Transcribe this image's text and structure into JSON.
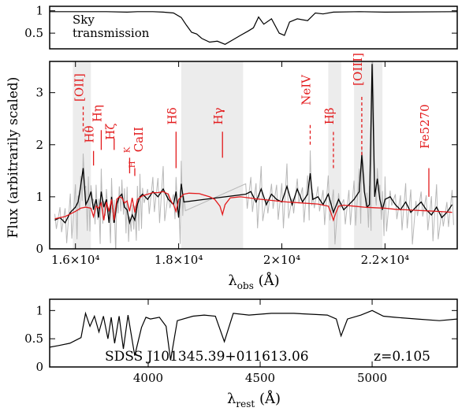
{
  "colors": {
    "model": "#e31a1c",
    "spectrum": "#000000",
    "error": "#b8b8b8",
    "shade": "#ececec",
    "line_labels": "#e31a1c"
  },
  "chart_data": [
    {
      "type": "line",
      "id": "sky",
      "label_lines": [
        "Sky",
        "transmission"
      ],
      "xlim": [
        15500,
        23400
      ],
      "ylim": [
        0.15,
        1.1
      ],
      "yticks": [
        0.5,
        1
      ],
      "ytick_labels": [
        "0.5",
        "1"
      ],
      "series": [
        {
          "x": [
            15500,
            16000,
            16600,
            17000,
            17200,
            17500,
            17700,
            17900,
            18050,
            18150,
            18250,
            18350,
            18450,
            18600,
            18750,
            18900,
            19050,
            19200,
            19350,
            19450,
            19550,
            19650,
            19800,
            19950,
            20050,
            20150,
            20300,
            20500,
            20650,
            20800,
            21000,
            21500,
            22000,
            23400
          ],
          "y": [
            0.98,
            0.98,
            0.98,
            0.97,
            0.98,
            0.98,
            0.97,
            0.95,
            0.85,
            0.68,
            0.52,
            0.48,
            0.38,
            0.3,
            0.32,
            0.25,
            0.35,
            0.45,
            0.55,
            0.62,
            0.86,
            0.7,
            0.82,
            0.5,
            0.45,
            0.75,
            0.82,
            0.78,
            0.95,
            0.93,
            0.97,
            0.98,
            0.97,
            0.98
          ]
        }
      ]
    },
    {
      "type": "line",
      "id": "obs",
      "xlabel": "λ",
      "xlabel_sub": "obs",
      "xlabel_unit": "(Å)",
      "ylabel": "Flux (arbitrarily scaled)",
      "xlim": [
        15500,
        23400
      ],
      "ylim": [
        0,
        3.6
      ],
      "xticks": [
        16000,
        18000,
        20000,
        22000
      ],
      "xtick_labels": [
        "1.6×10⁴",
        "1.8×10⁴",
        "2×10⁴",
        "2.2×10⁴"
      ],
      "yticks": [
        0,
        1,
        2,
        3
      ],
      "ytick_labels": [
        "0",
        "1",
        "2",
        "3"
      ],
      "shaded_regions": [
        [
          15950,
          16300
        ],
        [
          18050,
          19250
        ],
        [
          20900,
          21150
        ],
        [
          21400,
          21950
        ]
      ],
      "line_labels": [
        {
          "text": "[OII]",
          "x": 16150,
          "y_text": 3.1,
          "y0": 2.25,
          "y1": 2.75,
          "dashed": true
        },
        {
          "text": "Hθ",
          "x": 16350,
          "y_text": 2.2,
          "y0": 1.6,
          "y1": 1.88,
          "dashed": false
        },
        {
          "text": "Hη",
          "x": 16500,
          "y_text": 2.6,
          "y0": 1.9,
          "y1": 2.28,
          "dashed": false
        },
        {
          "text": "Hζ",
          "x": 16750,
          "y_text": 2.25,
          "y0": 1.9,
          "y1": 2.12,
          "dashed": false
        },
        {
          "text": "K",
          "x": 17050,
          "y_text": 1.9,
          "y0": 1.45,
          "y1": 1.75,
          "dashed": false
        },
        {
          "text": "H",
          "x": 17150,
          "y_text": 1.62,
          "y0": 1.4,
          "y1": 1.55,
          "dashed": false
        },
        {
          "text": "CaII",
          "x": 17300,
          "y_text": 2.1,
          "y0": 0,
          "y1": 0,
          "dashed": false
        },
        {
          "text": "Hδ",
          "x": 17950,
          "y_text": 2.55,
          "y0": 1.55,
          "y1": 2.25,
          "dashed": false
        },
        {
          "text": "Hγ",
          "x": 18850,
          "y_text": 2.55,
          "y0": 1.75,
          "y1": 2.25,
          "dashed": false
        },
        {
          "text": "NeIV",
          "x": 20550,
          "y_text": 3.05,
          "y0": 2.0,
          "y1": 2.38,
          "dashed": true
        },
        {
          "text": "Hβ",
          "x": 21000,
          "y_text": 2.55,
          "y0": 1.55,
          "y1": 2.25,
          "dashed": true
        },
        {
          "text": "[OIII]",
          "x": 21550,
          "y_text": 3.45,
          "y0": 1.8,
          "y1": 2.95,
          "dashed": true
        },
        {
          "text": "Fe5270",
          "x": 22850,
          "y_text": 2.35,
          "y0": 1.0,
          "y1": 1.55,
          "dashed": false
        }
      ],
      "series": [
        {
          "name": "spectrum",
          "x": [
            15600,
            15700,
            15800,
            15900,
            16000,
            16050,
            16100,
            16150,
            16200,
            16250,
            16300,
            16350,
            16400,
            16450,
            16500,
            16550,
            16600,
            16650,
            16700,
            16750,
            16800,
            16850,
            16900,
            16950,
            17000,
            17050,
            17100,
            17150,
            17200,
            17250,
            17300,
            17400,
            17500,
            17600,
            17700,
            17800,
            17900,
            17950,
            18000,
            18050,
            18100,
            19300,
            19400,
            19500,
            19600,
            19700,
            19800,
            19900,
            20000,
            20100,
            20200,
            20300,
            20400,
            20500,
            20550,
            20600,
            20700,
            20800,
            20900,
            21000,
            21100,
            21200,
            21300,
            21400,
            21500,
            21550,
            21600,
            21650,
            21700,
            21750,
            21800,
            21850,
            21900,
            21950,
            22000,
            22100,
            22200,
            22300,
            22400,
            22500,
            22600,
            22700,
            22800,
            22900,
            23000,
            23100,
            23200,
            23300
          ],
          "y": [
            0.55,
            0.6,
            0.5,
            0.7,
            0.8,
            0.9,
            1.2,
            1.55,
            0.85,
            0.95,
            1.1,
            0.75,
            0.95,
            0.6,
            1.1,
            0.8,
            0.95,
            0.5,
            1.0,
            0.5,
            0.85,
            1.0,
            1.05,
            0.8,
            0.75,
            0.5,
            0.65,
            0.55,
            0.85,
            1.0,
            1.05,
            0.95,
            1.1,
            1.0,
            1.15,
            0.95,
            0.85,
            1.1,
            0.6,
            1.25,
            0.9,
            1.05,
            1.1,
            0.9,
            1.15,
            0.85,
            1.05,
            0.95,
            0.9,
            1.2,
            0.85,
            1.15,
            0.9,
            1.05,
            1.45,
            0.95,
            1.0,
            0.85,
            1.05,
            0.7,
            0.95,
            0.75,
            0.85,
            0.95,
            1.1,
            1.8,
            1.1,
            0.8,
            0.85,
            3.55,
            1.0,
            1.35,
            0.95,
            0.75,
            0.95,
            1.0,
            0.85,
            0.75,
            0.9,
            0.7,
            0.8,
            0.9,
            0.75,
            0.65,
            0.8,
            0.6,
            0.7,
            0.85
          ]
        },
        {
          "name": "model",
          "x": [
            15600,
            15800,
            16000,
            16100,
            16200,
            16300,
            16350,
            16400,
            16450,
            16500,
            16550,
            16600,
            16650,
            16700,
            16750,
            16800,
            16850,
            16900,
            16950,
            17000,
            17050,
            17100,
            17150,
            17200,
            17300,
            17400,
            17500,
            17600,
            17700,
            17800,
            17850,
            17900,
            17950,
            18000,
            18100,
            18200,
            18400,
            18600,
            18700,
            18800,
            18850,
            18900,
            19000,
            19200,
            19500,
            19800,
            20100,
            20400,
            20700,
            20900,
            20950,
            21000,
            21050,
            21100,
            21200,
            21400,
            21600,
            21800,
            22000,
            22200,
            22400,
            22600,
            22800,
            23000,
            23200,
            23300
          ],
          "y": [
            0.58,
            0.62,
            0.72,
            0.78,
            0.8,
            0.78,
            0.62,
            0.82,
            0.78,
            0.88,
            0.55,
            0.9,
            0.72,
            0.95,
            0.55,
            0.95,
            1.0,
            0.98,
            0.88,
            0.92,
            0.72,
            0.98,
            0.7,
            0.95,
            1.02,
            1.05,
            1.08,
            1.08,
            1.1,
            1.05,
            0.92,
            0.85,
            0.72,
            0.95,
            1.05,
            1.07,
            1.06,
            1.0,
            0.95,
            0.82,
            0.66,
            0.85,
            0.98,
            1.0,
            0.96,
            0.93,
            0.9,
            0.88,
            0.86,
            0.82,
            0.7,
            0.55,
            0.7,
            0.82,
            0.84,
            0.82,
            0.8,
            0.79,
            0.78,
            0.76,
            0.75,
            0.74,
            0.73,
            0.72,
            0.71,
            0.7
          ]
        }
      ]
    },
    {
      "type": "line",
      "id": "rest",
      "xlabel": "λ",
      "xlabel_sub": "rest",
      "xlabel_unit": "(Å)",
      "annotation": "SDSS J101345.39+011613.06",
      "redshift_label": "z=0.105",
      "xlim": [
        3560,
        5380
      ],
      "ylim": [
        0,
        1.2
      ],
      "xticks": [
        4000,
        4500,
        5000
      ],
      "xtick_labels": [
        "4000",
        "4500",
        "5000"
      ],
      "yticks": [
        0,
        0.5,
        1
      ],
      "ytick_labels": [
        "0",
        "0.5",
        "1"
      ],
      "series": [
        {
          "x": [
            3560,
            3600,
            3650,
            3700,
            3720,
            3740,
            3760,
            3780,
            3800,
            3820,
            3835,
            3850,
            3870,
            3889,
            3910,
            3940,
            3970,
            3990,
            4010,
            4050,
            4080,
            4100,
            4130,
            4200,
            4250,
            4300,
            4340,
            4380,
            4450,
            4550,
            4650,
            4750,
            4800,
            4840,
            4861,
            4890,
            4950,
            5000,
            5050,
            5100,
            5200,
            5300,
            5380
          ],
          "y": [
            0.35,
            0.38,
            0.42,
            0.52,
            0.95,
            0.72,
            0.9,
            0.62,
            0.9,
            0.5,
            0.88,
            0.42,
            0.9,
            0.32,
            0.92,
            0.2,
            0.7,
            0.88,
            0.85,
            0.88,
            0.72,
            0.12,
            0.82,
            0.9,
            0.92,
            0.9,
            0.45,
            0.95,
            0.92,
            0.95,
            0.95,
            0.93,
            0.92,
            0.85,
            0.55,
            0.85,
            0.92,
            1.0,
            0.9,
            0.88,
            0.85,
            0.82,
            0.85
          ]
        }
      ]
    }
  ]
}
